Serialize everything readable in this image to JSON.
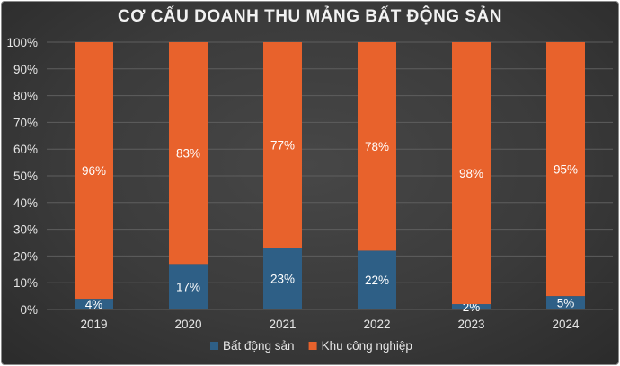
{
  "chart_data": {
    "type": "bar",
    "stacked": true,
    "title": "CƠ CẤU DOANH THU MẢNG BẤT ĐỘNG SẢN",
    "categories": [
      "2019",
      "2020",
      "2021",
      "2022",
      "2023",
      "2024"
    ],
    "series": [
      {
        "name": "Bất động sản",
        "values": [
          4,
          17,
          23,
          22,
          2,
          5
        ],
        "labels": [
          "4%",
          "17%",
          "23%",
          "22%",
          "2%",
          "5%"
        ],
        "color": "#2e5f86"
      },
      {
        "name": "Khu công nghiệp",
        "values": [
          96,
          83,
          77,
          78,
          98,
          95
        ],
        "labels": [
          "96%",
          "83%",
          "77%",
          "78%",
          "98%",
          "95%"
        ],
        "color": "#e8622c"
      }
    ],
    "y_ticks": [
      "0%",
      "10%",
      "20%",
      "30%",
      "40%",
      "50%",
      "60%",
      "70%",
      "80%",
      "90%",
      "100%"
    ],
    "ylim": [
      0,
      100
    ],
    "grid": true,
    "legend_position": "bottom"
  }
}
